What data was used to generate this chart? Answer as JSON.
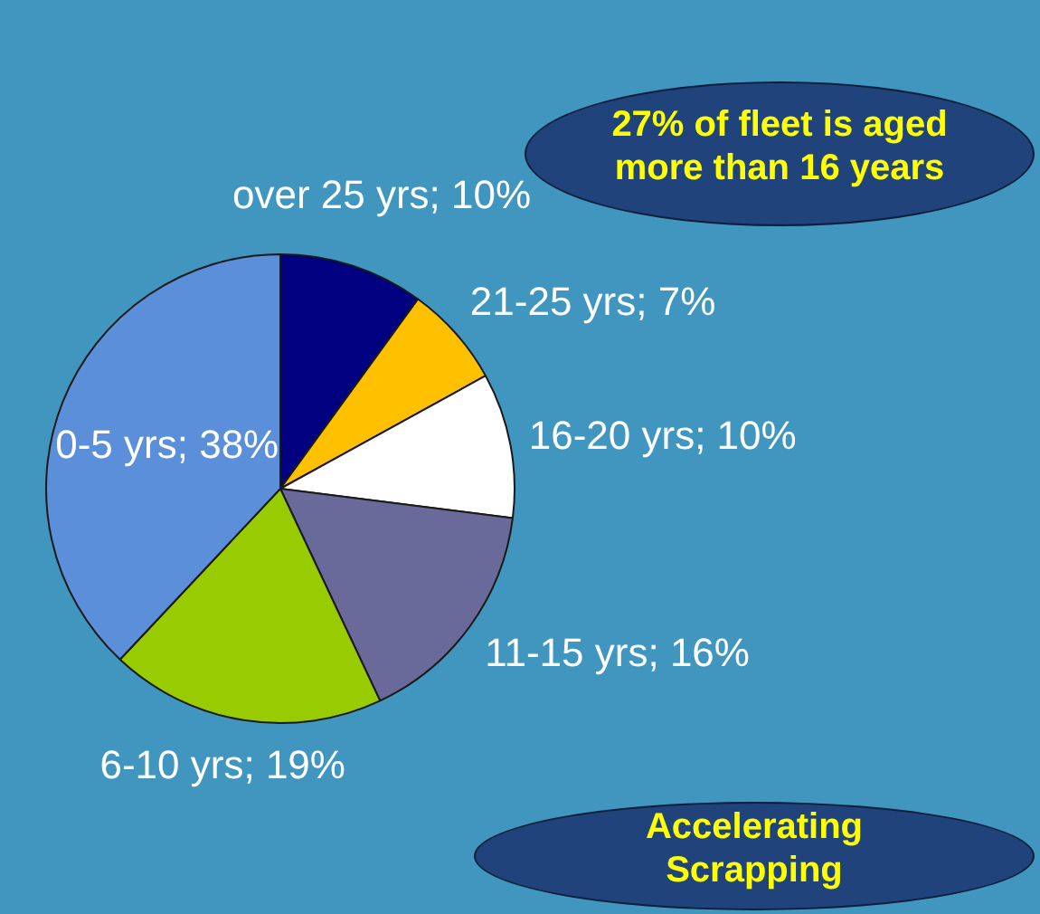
{
  "chart_data": {
    "type": "pie",
    "categories": [
      "over 25 yrs",
      "21-25 yrs",
      "16-20 yrs",
      "11-15 yrs",
      "6-10 yrs",
      "0-5 yrs"
    ],
    "values": [
      10,
      7,
      10,
      16,
      19,
      38
    ],
    "value_labels": [
      "10%",
      "7%",
      "10%",
      "16%",
      "19%",
      "38%"
    ],
    "colors": [
      "#000080",
      "#ffc000",
      "#ffffff",
      "#69699a",
      "#99cc00",
      "#5b8fd9"
    ],
    "annotations": [
      "27% of fleet is aged more than 16 years",
      "Accelerating Scrapping"
    ],
    "legend": false
  }
}
